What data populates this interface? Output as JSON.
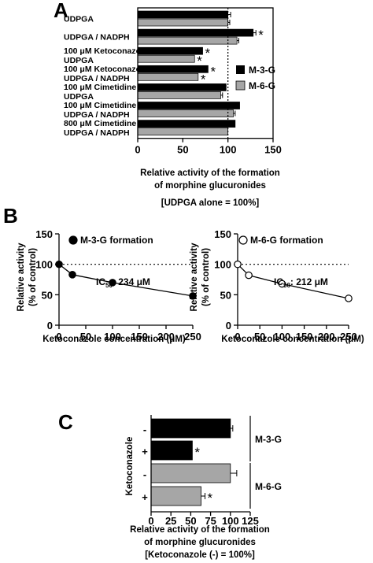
{
  "colors": {
    "m3g": "#000000",
    "m6g": "#a6a6a6",
    "open_marker": "#ffffff"
  },
  "panel_letters": {
    "a": "A",
    "b": "B",
    "c": "C"
  },
  "chart_data": [
    {
      "panel": "A",
      "type": "bar",
      "orientation": "horizontal",
      "categories": [
        [
          "UDPGA"
        ],
        [
          "UDPGA / NADPH"
        ],
        [
          "100 μM Ketoconazole",
          "UDPGA"
        ],
        [
          "100 μM Ketoconazole",
          "UDPGA / NADPH"
        ],
        [
          "100 μM Cimetidine",
          "UDPGA"
        ],
        [
          "100 μM Cimetidine",
          "UDPGA / NADPH"
        ],
        [
          "800 μM Cimetidine",
          "UDPGA / NADPH"
        ]
      ],
      "series": [
        {
          "name": "M-3-G",
          "values": [
            100,
            128,
            72,
            78,
            98,
            113,
            108
          ],
          "errors": [
            3,
            3,
            0,
            0,
            0,
            0,
            0
          ],
          "significant": [
            false,
            true,
            true,
            true,
            false,
            false,
            false
          ]
        },
        {
          "name": "M-6-G",
          "values": [
            100,
            110,
            63,
            67,
            92,
            106,
            100
          ],
          "errors": [
            2,
            2,
            0,
            0,
            2,
            2,
            0
          ],
          "significant": [
            false,
            false,
            true,
            true,
            false,
            false,
            false
          ]
        }
      ],
      "xlim": [
        0,
        150
      ],
      "xticks": [
        "0",
        "50",
        "100",
        "150"
      ],
      "reference_line": 100,
      "xlabel": [
        "Relative activity of the formation",
        "of morphine glucuronides"
      ],
      "note": "[UDPGA alone  = 100%]",
      "legend_position": "right",
      "star": "*"
    },
    {
      "panel": "B",
      "type": "line",
      "title": "M-3-G formation",
      "marker": "filled",
      "x": [
        0,
        25,
        100,
        250
      ],
      "y": [
        100,
        83,
        70,
        48
      ],
      "xlim": [
        0,
        250
      ],
      "ylim": [
        0,
        150
      ],
      "xticks": [
        "0",
        "50",
        "100",
        "150",
        "200",
        "250"
      ],
      "yticks": [
        "0",
        "50",
        "100",
        "150"
      ],
      "ylabel": [
        "Relative activity",
        "(% of control)"
      ],
      "xlabel": "Ketoconazole concentration (μM)",
      "reference_line": 100,
      "ic50_label": "IC",
      "ic50_sub": "50",
      "ic50_value": ": 234 μM"
    },
    {
      "panel": "B",
      "type": "line",
      "title": "M-6-G formation",
      "marker": "open",
      "x": [
        0,
        25,
        100,
        250
      ],
      "y": [
        100,
        82,
        68,
        44
      ],
      "xlim": [
        0,
        250
      ],
      "ylim": [
        0,
        150
      ],
      "xticks": [
        "0",
        "50",
        "100",
        "150",
        "200",
        "250"
      ],
      "yticks": [
        "0",
        "50",
        "100",
        "150"
      ],
      "ylabel": [
        "Relative activity",
        "(% of control)"
      ],
      "xlabel": "Ketoconazole concentration (μM)",
      "reference_line": 100,
      "ic50_label": "IC",
      "ic50_sub": "50",
      "ic50_value": ": 212 μM"
    },
    {
      "panel": "C",
      "type": "bar",
      "orientation": "horizontal",
      "factor_label": "Ketoconazole",
      "rows": [
        {
          "sign": "-",
          "group": "M-3-G",
          "value": 100,
          "error": 3,
          "significant": false
        },
        {
          "sign": "+",
          "group": "M-3-G",
          "value": 52,
          "error": 0,
          "significant": true
        },
        {
          "sign": "-",
          "group": "M-6-G",
          "value": 100,
          "error": 8,
          "significant": false
        },
        {
          "sign": "+",
          "group": "M-6-G",
          "value": 63,
          "error": 5,
          "significant": true
        }
      ],
      "groups": [
        "M-3-G",
        "M-6-G"
      ],
      "xlim": [
        0,
        125
      ],
      "xticks": [
        "0",
        "25",
        "50",
        "75",
        "100",
        "125"
      ],
      "xlabel": [
        "Relative activity of the formation",
        "of morphine glucuronides"
      ],
      "note": "[Ketoconazole (-) = 100%]",
      "star": "*"
    }
  ]
}
